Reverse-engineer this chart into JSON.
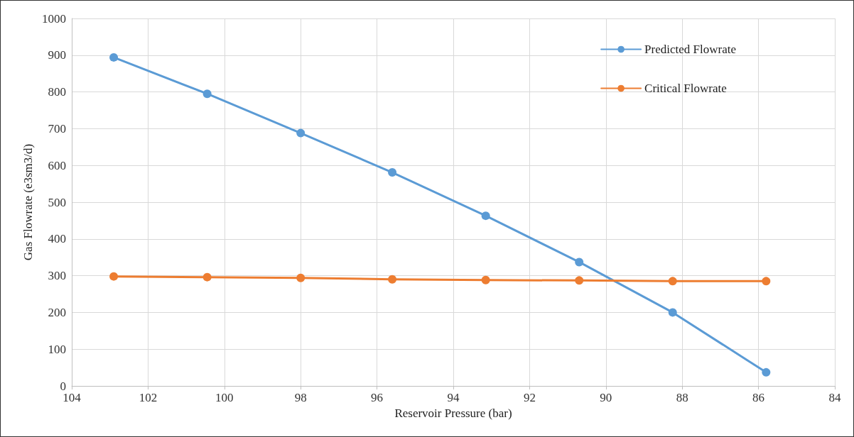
{
  "chart_data": {
    "type": "line",
    "xlabel": "Reservoir Pressure (bar)",
    "ylabel": "Gas Flowrate (e3sm3/d)",
    "x": [
      102.9,
      100.45,
      98.0,
      95.6,
      93.15,
      90.7,
      88.25,
      85.8
    ],
    "series": [
      {
        "name": "Predicted Flowrate",
        "color": "#5b9bd5",
        "values": [
          894,
          795,
          688,
          581,
          463,
          337,
          200,
          37
        ]
      },
      {
        "name": "Critical Flowrate",
        "color": "#ed7d31",
        "values": [
          298,
          296,
          294,
          290,
          288,
          287,
          285,
          285
        ]
      }
    ],
    "xlim": [
      104,
      84
    ],
    "xticks": [
      104,
      102,
      100,
      98,
      96,
      94,
      92,
      90,
      88,
      86,
      84
    ],
    "ylim": [
      0,
      1000
    ],
    "yticks": [
      0,
      100,
      200,
      300,
      400,
      500,
      600,
      700,
      800,
      900,
      1000
    ],
    "grid": true,
    "legend": "top right",
    "marker": "circle",
    "line_style": "solid"
  }
}
